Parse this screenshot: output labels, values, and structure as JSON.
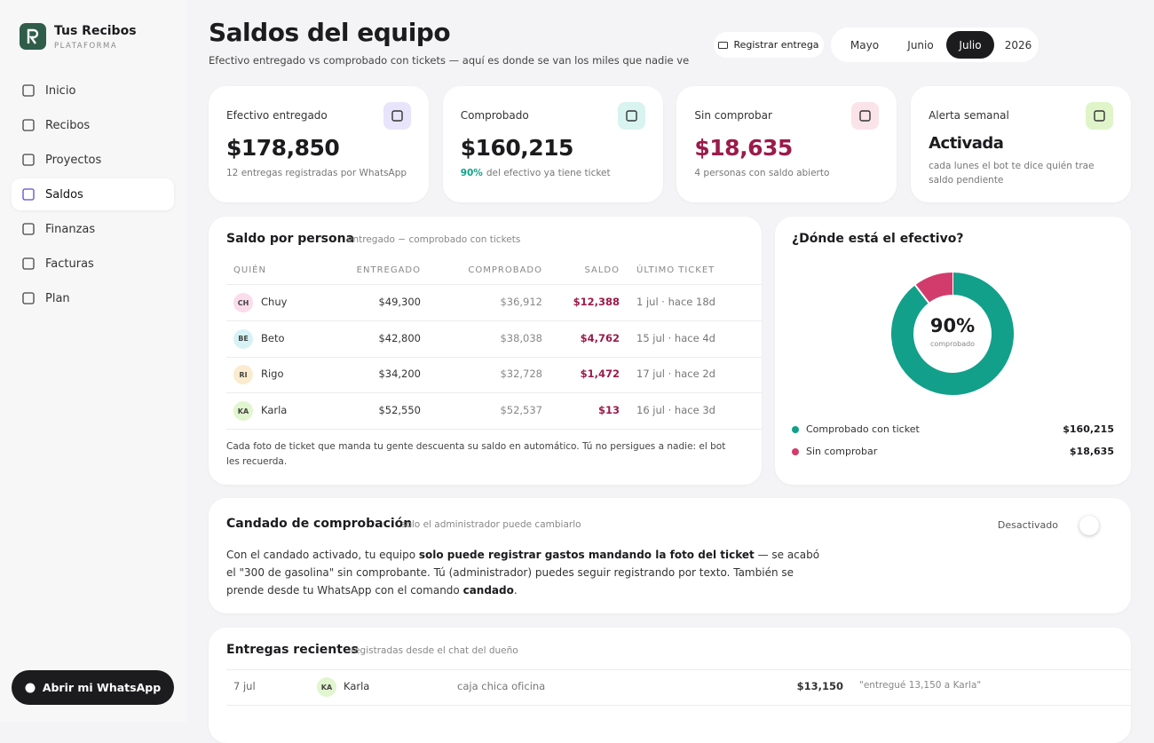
{
  "brand": {
    "name": "Tus Recibos",
    "tag": "PLATAFORMA"
  },
  "nav": [
    {
      "label": "Inicio"
    },
    {
      "label": "Recibos"
    },
    {
      "label": "Proyectos"
    },
    {
      "label": "Saldos",
      "active": true
    },
    {
      "label": "Finanzas"
    },
    {
      "label": "Facturas"
    },
    {
      "label": "Plan"
    }
  ],
  "cta": "Abrir mi WhatsApp",
  "header": {
    "title": "Saldos del equipo",
    "subtitle": "Efectivo entregado vs comprobado con tickets — aquí es donde se van los miles que nadie ve",
    "action": "Registrar entrega",
    "periods": [
      {
        "label": "Mayo"
      },
      {
        "label": "Junio"
      },
      {
        "label": "Julio",
        "active": true
      },
      {
        "label": "2026"
      }
    ]
  },
  "kpis": [
    {
      "label": "Efectivo entregado",
      "value": "$178,850",
      "note": "12 entregas registradas por WhatsApp"
    },
    {
      "label": "Comprobado",
      "value": "$160,215",
      "note_strong": "90%",
      "note": "del efectivo ya tiene ticket"
    },
    {
      "label": "Sin comprobar",
      "value": "$18,635",
      "note": "4 personas con saldo abierto"
    },
    {
      "label": "Alerta semanal",
      "value": "Activada",
      "note": "cada lunes el bot te dice quién trae saldo pendiente"
    }
  ],
  "balances": {
    "title": "Saldo por persona",
    "subtitle": "entregado − comprobado con tickets",
    "columns": [
      "QUIÉN",
      "ENTREGADO",
      "COMPROBADO",
      "SALDO",
      "ÚLTIMO TICKET"
    ],
    "rows": [
      [
        "CH",
        "Chuy",
        "$49,300",
        "$36,912",
        "$12,388",
        "1 jul · hace 18d"
      ],
      [
        "BE",
        "Beto",
        "$42,800",
        "$38,038",
        "$4,762",
        "15 jul · hace 4d"
      ],
      [
        "RI",
        "Rigo",
        "$34,200",
        "$32,728",
        "$1,472",
        "17 jul · hace 2d"
      ],
      [
        "KA",
        "Karla",
        "$52,550",
        "$52,537",
        "$13",
        "16 jul · hace 3d"
      ]
    ],
    "footnote": "Cada foto de ticket que manda tu gente descuenta su saldo en automático. Tú no persigues a nadie: el bot les recuerda."
  },
  "cash": {
    "title": "¿Dónde está el efectivo?",
    "center_value": "90%",
    "center_label": "comprobado",
    "segments": [
      {
        "name": "Comprobado con ticket",
        "value": 160215,
        "value_label": "$160,215",
        "color": "#12a08a"
      },
      {
        "name": "Sin comprobar",
        "value": 18635,
        "value_label": "$18,635",
        "color": "#d23c6c"
      }
    ]
  },
  "lock": {
    "title": "Candado de comprobación",
    "subtitle": "solo el administrador puede cambiarlo",
    "status": "Desactivado",
    "body": [
      {
        "text": "Con el candado activado, tu equipo "
      },
      {
        "text": "solo puede registrar gastos mandando la foto del ticket",
        "bold": true
      },
      {
        "text": " — se acabó el \"300 de gasolina\" sin comprobante. Tú (administrador) puedes seguir registrando por texto. También se prende desde tu WhatsApp con el comando "
      },
      {
        "text": "candado",
        "bold": true
      },
      {
        "text": "."
      }
    ]
  },
  "deliveries": {
    "title": "Entregas recientes",
    "subtitle": "registradas desde el chat del dueño",
    "rows": [
      [
        "7 jul",
        "KA",
        "Karla",
        "caja chica oficina",
        "$13,150",
        "\"entregué 13,150 a Karla\""
      ]
    ]
  }
}
